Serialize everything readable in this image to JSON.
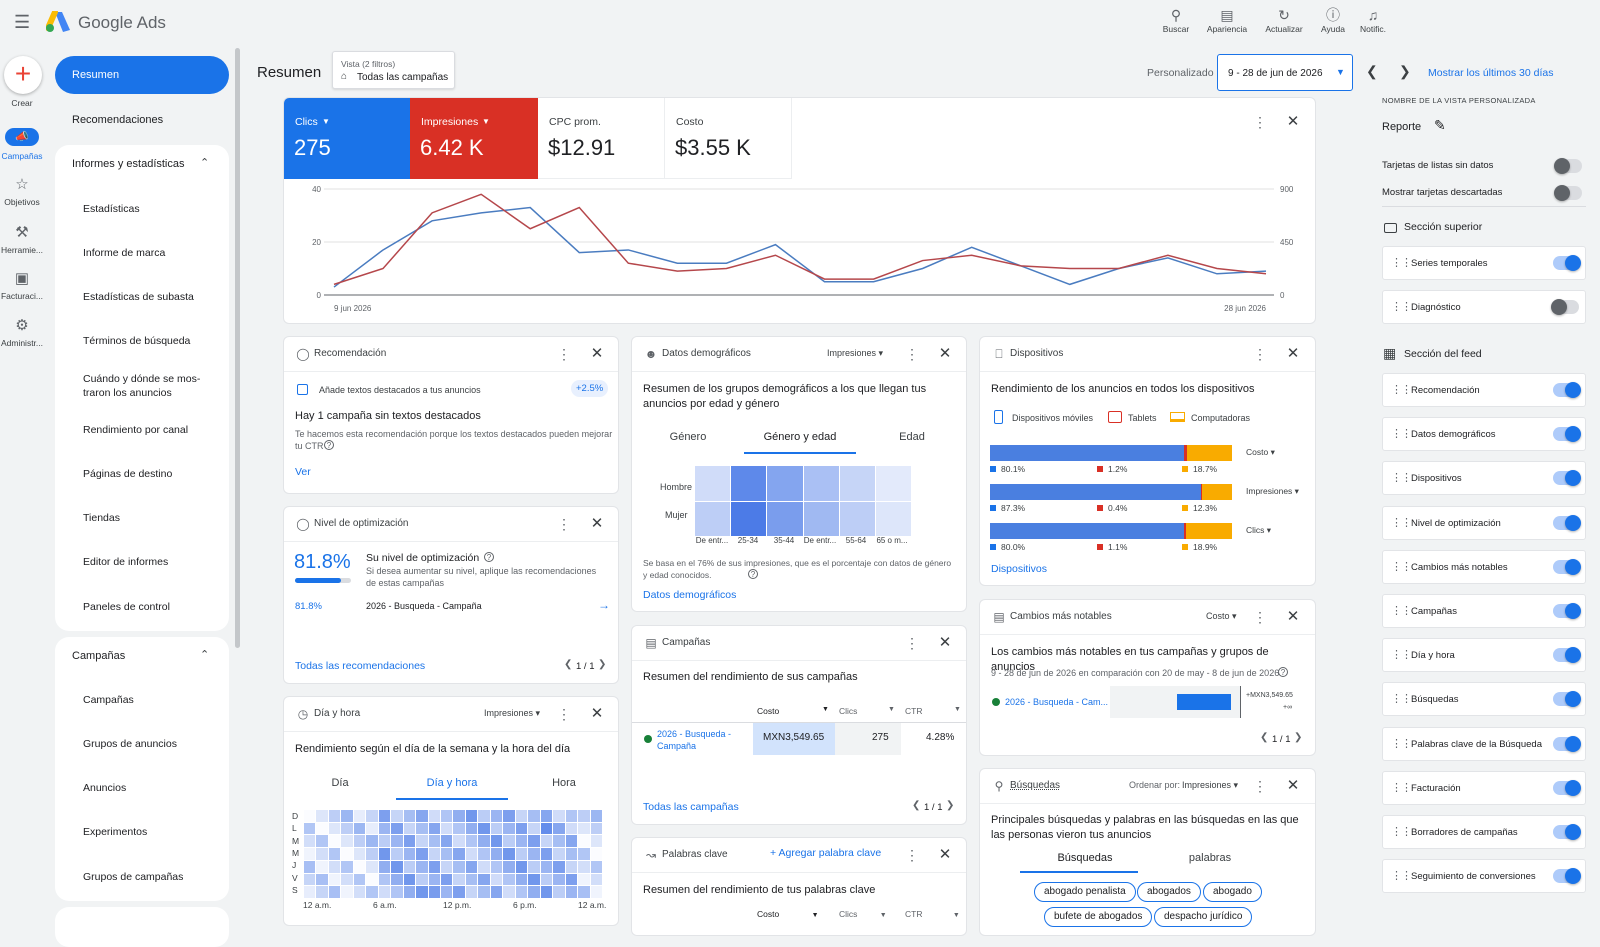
{
  "app": {
    "name": "Google Ads",
    "create_label": "Crear"
  },
  "topbar": [
    {
      "icon": "search-icon",
      "label": "Buscar"
    },
    {
      "icon": "appearance-icon",
      "label": "Apariencia"
    },
    {
      "icon": "refresh-icon",
      "label": "Actualizar"
    },
    {
      "icon": "help-icon",
      "label": "Ayuda"
    },
    {
      "icon": "bell-icon",
      "label": "Notific."
    }
  ],
  "rail": [
    {
      "label": "Campañas"
    },
    {
      "label": "Objetivos"
    },
    {
      "label": "Herramie..."
    },
    {
      "label": "Facturaci..."
    },
    {
      "label": "Administr..."
    }
  ],
  "nav": {
    "resumen": "Resumen",
    "recomendaciones": "Recomendaciones",
    "informes": "Informes y estadísticas",
    "informes_items": [
      "Estadísticas",
      "Informe de marca",
      "Estadísticas de subasta",
      "Términos de búsqueda",
      "Cuándo y dónde se mos-\ntraron los anuncios",
      "Rendimiento por canal",
      "Páginas de destino",
      "Tiendas",
      "Editor de informes",
      "Paneles de control"
    ],
    "campanas": "Campañas",
    "campanas_items": [
      "Campañas",
      "Grupos de anuncios",
      "Anuncios",
      "Experimentos",
      "Grupos de campañas"
    ]
  },
  "header": {
    "title": "Resumen",
    "view_label": "Vista (2 filtros)",
    "view_value": "Todas las campañas",
    "custom": "Personalizado",
    "date": "9 - 28 de jun de 2026",
    "last30": "Mostrar los últimos 30 días"
  },
  "metrics": [
    {
      "label": "Clics",
      "value": "275"
    },
    {
      "label": "Impresiones",
      "value": "6.42 K"
    },
    {
      "label": "CPC prom.",
      "value": "$12.91"
    },
    {
      "label": "Costo",
      "value": "$3.55 K"
    }
  ],
  "timeseries": {
    "chart_data": {
      "type": "line",
      "x": [
        "9 jun 2026",
        "",
        "",
        "",
        "",
        "",
        "",
        "",
        "",
        "",
        "",
        "",
        "",
        "",
        "",
        "",
        "",
        "",
        "",
        "28 jun 2026"
      ],
      "series": [
        {
          "color": "#4a7cc0",
          "values": [
            3,
            17,
            28,
            31,
            33,
            16,
            17,
            12,
            12,
            19,
            5,
            5,
            10,
            18,
            11,
            4,
            10,
            14,
            8,
            9
          ]
        },
        {
          "color": "#b5474b",
          "values": [
            4,
            10,
            31,
            38,
            25,
            33,
            12,
            9,
            10,
            15,
            6,
            6,
            13,
            15,
            11,
            10,
            10,
            15,
            10,
            8
          ]
        }
      ],
      "ylim": [
        0,
        40
      ],
      "y2lim": [
        0,
        900
      ],
      "y_ticks": [
        "40",
        "20",
        "0"
      ],
      "y2_ticks": [
        "900",
        "450",
        "0"
      ]
    }
  },
  "recomendacion": {
    "title": "Recomendación",
    "row": "Añade textos destacados a tus anuncios",
    "badge": "+2.5%",
    "headline": "Hay 1 campaña sin textos destacados",
    "desc": "Te hacemos esta recomendación porque los textos destacados pueden mejorar tu CTR",
    "link": "Ver"
  },
  "optimizacion": {
    "title": "Nivel de optimización",
    "score": "81.8%",
    "head": "Su nivel de optimización",
    "desc": "Si desea aumentar su nivel, aplique las recomendaciones de estas campañas",
    "row_score": "81.8%",
    "row_name": "2026 - Busqueda - Campaña",
    "link": "Todas las recomendaciones",
    "pager": "1 / 1",
    "progress": 0.818
  },
  "diahora": {
    "title": "Día y hora",
    "dd": "Impresiones",
    "headline": "Rendimiento según el día de la semana y la hora del día",
    "tabs": [
      "Día",
      "Día y hora",
      "Hora"
    ],
    "days": [
      "D",
      "L",
      "M",
      "M",
      "J",
      "V",
      "S"
    ],
    "hours": [
      "12 a.m.",
      "6 a.m.",
      "12 p.m.",
      "6 p.m.",
      "12 a.m."
    ]
  },
  "demograficos": {
    "title": "Datos demográficos",
    "dd": "Impresiones",
    "headline": "Resumen de los grupos demográficos a los que llegan tus anuncios por edad y género",
    "tabs": [
      "Género",
      "Género y edad",
      "Edad"
    ],
    "rows": [
      "Hombre",
      "Mujer"
    ],
    "cols": [
      "De entr...",
      "25-34",
      "35-44",
      "De entr...",
      "55-64",
      "65 o m..."
    ],
    "note": "Se basa en el 76% de sus impresiones, que es el porcentaje con datos de género y edad conocidos.",
    "link": "Datos demográficos"
  },
  "campanas_card": {
    "title": "Campañas",
    "headline": "Resumen del rendimiento de sus campañas",
    "cols": [
      "Costo",
      "Clics",
      "CTR"
    ],
    "row": {
      "name": "2026 - Busqueda - Campaña",
      "cost": "MXN3,549.65",
      "clicks": "275",
      "ctr": "4.28%"
    },
    "link": "Todas las campañas",
    "pager": "1 / 1"
  },
  "palabras": {
    "title": "Palabras clave",
    "add": "Agregar palabra clave",
    "headline": "Resumen del rendimiento de tus palabras clave",
    "cols": [
      "Costo",
      "Clics",
      "CTR"
    ]
  },
  "dispositivos": {
    "title": "Dispositivos",
    "headline": "Rendimiento de los anuncios en todos los dispositivos",
    "legend": [
      "Dispositivos móviles",
      "Tablets",
      "Computadoras"
    ],
    "chart_data": {
      "type": "bar",
      "categories": [
        "Costo",
        "Impresiones",
        "Clics"
      ],
      "series": [
        {
          "name": "Dispositivos móviles",
          "values": [
            80.1,
            87.3,
            80.0
          ]
        },
        {
          "name": "Tablets",
          "values": [
            1.2,
            0.4,
            1.1
          ]
        },
        {
          "name": "Computadoras",
          "values": [
            18.7,
            12.3,
            18.9
          ]
        }
      ],
      "labels": [
        [
          "80.1%",
          "1.2%",
          "18.7%"
        ],
        [
          "87.3%",
          "0.4%",
          "12.3%"
        ],
        [
          "80.0%",
          "1.1%",
          "18.9%"
        ]
      ]
    },
    "link": "Dispositivos"
  },
  "cambios": {
    "title": "Cambios más notables",
    "dd": "Costo",
    "headline": "Los cambios más notables en tus campañas y grupos de anuncios",
    "sub": "9 - 28 de jun de 2026 en comparación con 20 de may - 8 de jun de 2026",
    "row": "2026 - Busqueda - Cam...",
    "val1": "+MXN3,549.65",
    "val2": "+∞",
    "pager": "1 / 1"
  },
  "busquedas": {
    "title": "Búsquedas",
    "order": "Ordenar por:",
    "dd": "Impresiones",
    "headline": "Principales búsquedas y palabras en las búsquedas en las que las personas vieron tus anuncios",
    "tabs": [
      "Búsquedas",
      "palabras"
    ],
    "chips": [
      "abogado penalista",
      "abogados",
      "abogado",
      "bufete de abogados",
      "despacho jurídico"
    ]
  },
  "panel": {
    "section_label": "NOMBRE DE LA VISTA PERSONALIZADA",
    "report": "Reporte",
    "opt1": "Tarjetas de listas sin datos",
    "opt2": "Mostrar tarjetas descartadas",
    "sup": "Sección superior",
    "feed": "Sección del feed",
    "sup_rows": [
      {
        "label": "Series temporales",
        "on": true
      },
      {
        "label": "Diagnóstico",
        "on": false
      }
    ],
    "feed_rows": [
      {
        "label": "Recomendación",
        "on": true
      },
      {
        "label": "Datos demográficos",
        "on": true
      },
      {
        "label": "Dispositivos",
        "on": true
      },
      {
        "label": "Nivel de optimización",
        "on": true
      },
      {
        "label": "Cambios más notables",
        "on": true
      },
      {
        "label": "Campañas",
        "on": true
      },
      {
        "label": "Día y hora",
        "on": true
      },
      {
        "label": "Búsquedas",
        "on": true
      },
      {
        "label": "Palabras clave de la Búsqueda",
        "on": true
      },
      {
        "label": "Facturación",
        "on": true
      },
      {
        "label": "Borradores de campañas",
        "on": true
      },
      {
        "label": "Seguimiento de conversiones",
        "on": true
      }
    ]
  }
}
